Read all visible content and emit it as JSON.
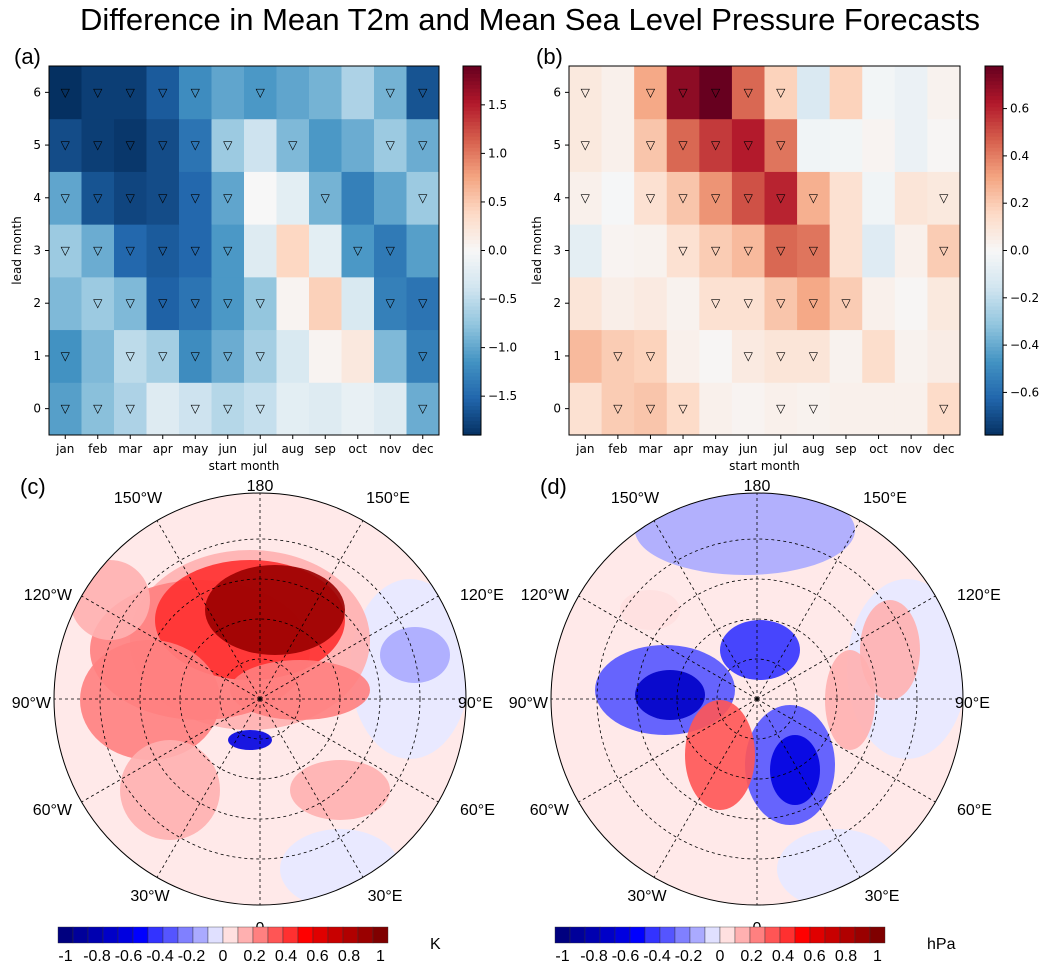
{
  "title": "Difference in Mean T2m and Mean Sea Level Pressure Forecasts",
  "panels": {
    "a": "(a)",
    "b": "(b)",
    "c": "(c)",
    "d": "(d)"
  },
  "chart_data": [
    {
      "type": "heatmap",
      "panel": "(a)",
      "xlabel": "start month",
      "ylabel": "lead month",
      "categories": [
        "jan",
        "feb",
        "mar",
        "apr",
        "may",
        "jun",
        "jul",
        "aug",
        "sep",
        "oct",
        "nov",
        "dec"
      ],
      "y_categories": [
        0,
        1,
        2,
        3,
        4,
        5,
        6
      ],
      "colormap": "RdBu_r",
      "clim": [
        -1.9,
        1.9
      ],
      "colorbar_ticks": [
        "−1.5",
        "−1.0",
        "−0.5",
        "0.0",
        "0.5",
        "1.0",
        "1.5"
      ],
      "colorbar_tick_values": [
        -1.5,
        -1.0,
        -0.5,
        0.0,
        0.5,
        1.0,
        1.5
      ],
      "values_by_lead": {
        "6": [
          -1.9,
          -1.8,
          -1.8,
          -1.6,
          -1.2,
          -1.0,
          -1.1,
          -1.0,
          -0.9,
          -0.6,
          -0.9,
          -1.65
        ],
        "5": [
          -1.7,
          -1.8,
          -1.85,
          -1.7,
          -1.4,
          -0.7,
          -0.4,
          -0.85,
          -1.1,
          -0.95,
          -0.7,
          -0.95
        ],
        "4": [
          -1.0,
          -1.65,
          -1.75,
          -1.7,
          -1.5,
          -1.0,
          0.0,
          -0.2,
          -0.9,
          -1.3,
          -1.0,
          -0.7
        ],
        "3": [
          -0.7,
          -0.95,
          -1.5,
          -1.6,
          -1.5,
          -1.1,
          -0.25,
          0.4,
          -0.2,
          -1.1,
          -1.35,
          -1.05
        ],
        "2": [
          -0.85,
          -0.7,
          -0.85,
          -1.55,
          -1.4,
          -1.1,
          -0.75,
          0.05,
          0.45,
          -0.3,
          -1.3,
          -1.4
        ],
        "1": [
          -1.15,
          -0.85,
          -0.5,
          -0.65,
          -1.2,
          -0.95,
          -0.65,
          -0.3,
          0.05,
          0.2,
          -0.85,
          -1.3
        ],
        "0": [
          -1.05,
          -0.8,
          -0.6,
          -0.25,
          -0.4,
          -0.55,
          -0.45,
          -0.2,
          -0.25,
          -0.15,
          -0.25,
          -0.95
        ]
      },
      "significant_markers": {
        "6": [
          "jan",
          "feb",
          "mar",
          "apr",
          "may",
          "jul",
          "nov",
          "dec"
        ],
        "5": [
          "jan",
          "feb",
          "mar",
          "apr",
          "may",
          "jun",
          "aug",
          "nov",
          "dec"
        ],
        "4": [
          "jan",
          "feb",
          "mar",
          "apr",
          "may",
          "jun",
          "sep",
          "dec"
        ],
        "3": [
          "jan",
          "feb",
          "mar",
          "apr",
          "may",
          "jun",
          "oct",
          "nov"
        ],
        "2": [
          "feb",
          "mar",
          "apr",
          "may",
          "jun",
          "jul",
          "nov",
          "dec"
        ],
        "1": [
          "jan",
          "mar",
          "apr",
          "may",
          "jun",
          "jul",
          "dec"
        ],
        "0": [
          "jan",
          "feb",
          "mar",
          "may",
          "jun",
          "jul",
          "dec"
        ]
      },
      "marker": "▽"
    },
    {
      "type": "heatmap",
      "panel": "(b)",
      "xlabel": "start month",
      "ylabel": "lead month",
      "categories": [
        "jan",
        "feb",
        "mar",
        "apr",
        "may",
        "jun",
        "jul",
        "aug",
        "sep",
        "oct",
        "nov",
        "dec"
      ],
      "y_categories": [
        0,
        1,
        2,
        3,
        4,
        5,
        6
      ],
      "colormap": "RdBu_r",
      "clim": [
        -0.78,
        0.78
      ],
      "colorbar_ticks": [
        "−0.6",
        "−0.4",
        "−0.2",
        "0.0",
        "0.2",
        "0.4",
        "0.6"
      ],
      "colorbar_tick_values": [
        -0.6,
        -0.4,
        -0.2,
        0.0,
        0.2,
        0.4,
        0.6
      ],
      "values_by_lead": {
        "6": [
          0.08,
          0.04,
          0.3,
          0.7,
          0.78,
          0.45,
          0.18,
          -0.12,
          0.18,
          -0.02,
          -0.05,
          0.03
        ],
        "5": [
          0.08,
          0.04,
          0.22,
          0.45,
          0.55,
          0.62,
          0.42,
          -0.03,
          -0.02,
          0.02,
          -0.05,
          0.01
        ],
        "4": [
          0.04,
          -0.01,
          0.12,
          0.22,
          0.35,
          0.5,
          0.6,
          0.28,
          0.12,
          -0.03,
          0.1,
          0.08
        ],
        "3": [
          -0.08,
          0.02,
          0.03,
          0.12,
          0.2,
          0.25,
          0.45,
          0.42,
          0.12,
          -0.1,
          0.04,
          0.2
        ],
        "2": [
          0.1,
          0.05,
          0.07,
          0.03,
          0.12,
          0.12,
          0.22,
          0.3,
          0.2,
          0.04,
          0.01,
          0.08
        ],
        "1": [
          0.25,
          0.2,
          0.18,
          0.04,
          0.01,
          0.07,
          0.1,
          0.1,
          0.03,
          0.14,
          0.03,
          0.06
        ],
        "0": [
          0.12,
          0.2,
          0.22,
          0.15,
          0.04,
          0.02,
          0.04,
          0.03,
          0.04,
          0.04,
          0.04,
          0.15
        ]
      },
      "significant_markers": {
        "6": [
          "jan",
          "mar",
          "apr",
          "may",
          "jun",
          "jul"
        ],
        "5": [
          "jan",
          "mar",
          "apr",
          "may",
          "jun",
          "jul"
        ],
        "4": [
          "jan",
          "mar",
          "apr",
          "may",
          "jun",
          "jul",
          "aug",
          "dec"
        ],
        "3": [
          "apr",
          "may",
          "jun",
          "jul",
          "aug",
          "dec"
        ],
        "2": [
          "may",
          "jun",
          "jul",
          "aug",
          "sep"
        ],
        "1": [
          "feb",
          "mar",
          "jun",
          "jul",
          "aug"
        ],
        "0": [
          "feb",
          "mar",
          "apr",
          "jul",
          "aug",
          "dec"
        ]
      },
      "marker": "▽"
    }
  ],
  "maps": {
    "lon_labels": {
      "top": "180",
      "bottom": "0",
      "w150": "150°W",
      "e150": "150°E",
      "w120": "120°W",
      "e120": "120°E",
      "w90": "90°W",
      "e90": "90°E",
      "w60": "60°W",
      "e60": "60°E",
      "w30": "30°W",
      "e30": "30°E"
    },
    "c": {
      "unit": "K",
      "colorbar_ticks": [
        "-1",
        "-0.8",
        "-0.6",
        "-0.4",
        "-0.2",
        "0",
        "0.2",
        "0.4",
        "0.6",
        "0.8",
        "1"
      ]
    },
    "d": {
      "unit": "hPa",
      "colorbar_ticks": [
        "-1",
        "-0.8",
        "-0.6",
        "-0.4",
        "-0.2",
        "0",
        "0.2",
        "0.4",
        "0.6",
        "0.8",
        "1"
      ]
    },
    "colorbar_levels": [
      "#00007f",
      "#00009a",
      "#0000b0",
      "#0000c8",
      "#0000e0",
      "#0000ff",
      "#3333ff",
      "#5555ff",
      "#8080ff",
      "#aaaaff",
      "#e0e0ff",
      "#ffe0e0",
      "#ffb0b0",
      "#ff8080",
      "#ff5555",
      "#ff3030",
      "#ff0000",
      "#e00000",
      "#c80000",
      "#b00000",
      "#9a0000",
      "#7f0000"
    ]
  }
}
